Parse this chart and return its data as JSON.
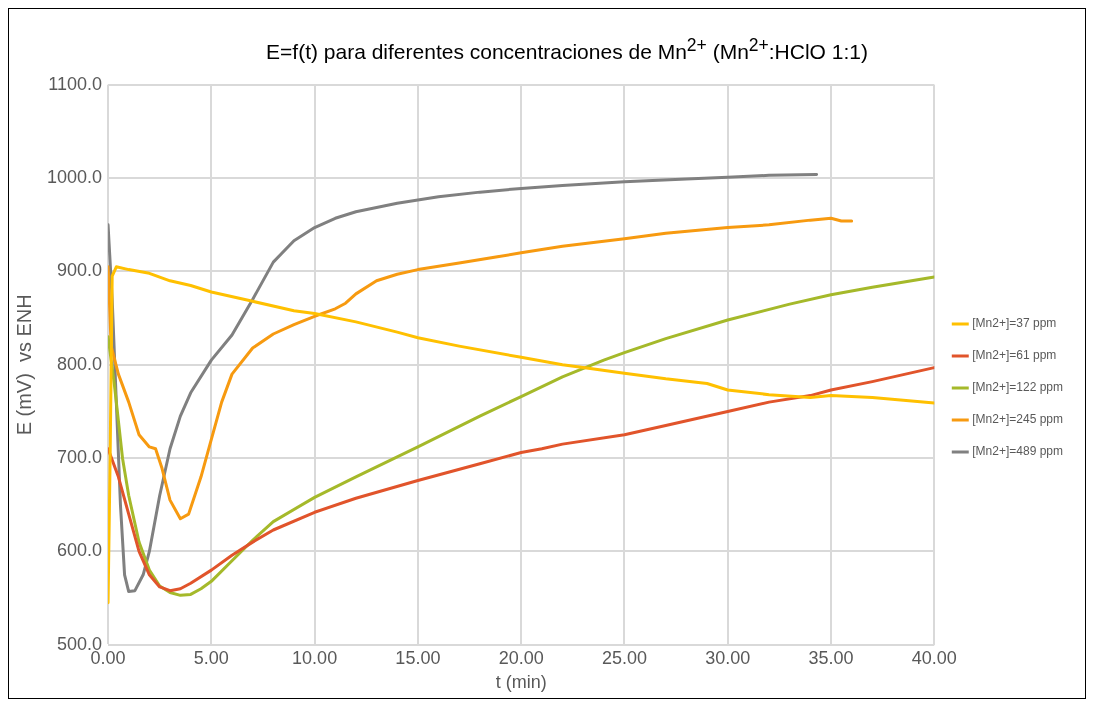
{
  "chart_data": {
    "type": "line",
    "title": "E=f(t) para diferentes concentraciones de Mn$^{2+}$ (Mn$^{2+}$:HClO 1:1)",
    "xlabel": "t (min)",
    "ylabel": "E (mV)  vs ENH",
    "xlim": [
      0,
      40
    ],
    "xticks": [
      {
        "value": 0,
        "label": "0.00"
      },
      {
        "value": 5,
        "label": "5.00"
      },
      {
        "value": 10,
        "label": "10.00"
      },
      {
        "value": 15,
        "label": "15.00"
      },
      {
        "value": 20,
        "label": "20.00"
      },
      {
        "value": 25,
        "label": "25.00"
      },
      {
        "value": 30,
        "label": "30.00"
      },
      {
        "value": 35,
        "label": "35.00"
      },
      {
        "value": 40,
        "label": "40.00"
      }
    ],
    "ylim": [
      500,
      1100
    ],
    "yticks": [
      {
        "value": 500,
        "label": "500.0"
      },
      {
        "value": 600,
        "label": "600.0"
      },
      {
        "value": 700,
        "label": "700.0"
      },
      {
        "value": 800,
        "label": "800.0"
      },
      {
        "value": 900,
        "label": "900.0"
      },
      {
        "value": 1000,
        "label": "1000.0"
      },
      {
        "value": 1100,
        "label": "1100.0"
      }
    ],
    "grid": true,
    "legend": "right",
    "marker": "none",
    "line_style": "solid",
    "series": [
      {
        "name": "[Mn2+]=37 ppm",
        "color": "#ffc000",
        "x": [
          0,
          0.1,
          0.2,
          0.4,
          1,
          2,
          3,
          4,
          5,
          7,
          9,
          10,
          12,
          14,
          15,
          17,
          20,
          22,
          23,
          25,
          27,
          29,
          30,
          32,
          34,
          35,
          37,
          40
        ],
        "values": [
          545,
          700,
          895,
          905,
          902,
          898,
          890,
          885,
          878,
          868,
          858,
          855,
          846,
          835,
          829,
          820,
          808,
          800,
          797,
          791,
          785,
          780,
          773,
          768,
          765,
          767,
          765,
          759
        ]
      },
      {
        "name": "[Mn2+]=61 ppm",
        "color": "#e1542b",
        "x": [
          0,
          0.5,
          1,
          1.5,
          2,
          2.5,
          3,
          3.5,
          4,
          5,
          6,
          7,
          8,
          10,
          12,
          15,
          18,
          20,
          21,
          22,
          25,
          27,
          30,
          32,
          34,
          35,
          37,
          40
        ],
        "values": [
          710,
          680,
          640,
          600,
          575,
          562,
          558,
          560,
          566,
          580,
          596,
          610,
          623,
          642,
          657,
          676,
          694,
          706,
          710,
          715,
          725,
          735,
          750,
          760,
          767,
          773,
          782,
          797
        ]
      },
      {
        "name": "[Mn2+]=122 ppm",
        "color": "#a5b92a",
        "x": [
          0,
          0.3,
          0.7,
          1,
          1.5,
          2,
          2.5,
          3,
          3.5,
          4,
          4.5,
          5,
          6,
          7,
          8,
          10,
          12,
          15,
          18,
          20,
          22,
          24,
          25,
          27,
          30,
          33,
          35,
          37,
          40
        ],
        "values": [
          830,
          780,
          700,
          660,
          610,
          580,
          563,
          556,
          553,
          554,
          560,
          568,
          590,
          612,
          632,
          658,
          680,
          712,
          745,
          766,
          787,
          805,
          813,
          828,
          848,
          865,
          875,
          883,
          894
        ]
      },
      {
        "name": "[Mn2+]=245 ppm",
        "color": "#f79a10",
        "x": [
          0,
          0.15,
          0.5,
          1,
          1.5,
          2,
          2.3,
          2.6,
          3,
          3.5,
          3.9,
          4.5,
          5,
          5.5,
          6,
          7,
          8,
          9,
          10,
          11,
          11.5,
          12,
          13,
          14,
          15,
          17,
          20,
          22,
          25,
          27,
          30,
          32,
          34,
          35,
          35.5,
          36
        ],
        "values": [
          905,
          820,
          790,
          760,
          725,
          712,
          710,
          690,
          655,
          635,
          640,
          680,
          720,
          760,
          790,
          818,
          833,
          843,
          852,
          860,
          866,
          876,
          890,
          897,
          902,
          909,
          920,
          927,
          935,
          941,
          947,
          950,
          955,
          957,
          954,
          954
        ]
      },
      {
        "name": "[Mn2+]=489 ppm",
        "color": "#808080",
        "x": [
          0,
          0.2,
          0.4,
          0.6,
          0.8,
          1,
          1.3,
          1.7,
          2,
          2.5,
          3,
          3.5,
          4,
          5,
          6,
          7,
          8,
          9,
          10,
          11,
          12,
          14,
          16,
          18,
          20,
          22,
          25,
          28,
          30,
          32,
          34.3
        ],
        "values": [
          950,
          870,
          760,
          650,
          575,
          557,
          558,
          575,
          600,
          660,
          710,
          745,
          770,
          805,
          832,
          870,
          910,
          933,
          947,
          957,
          964,
          973,
          980,
          985,
          989,
          992,
          996,
          999,
          1001,
          1003,
          1004
        ]
      }
    ]
  }
}
